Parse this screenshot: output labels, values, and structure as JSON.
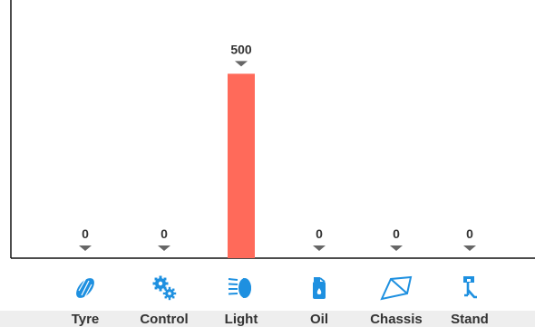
{
  "colors": {
    "bar": "#ff6a5a",
    "icon": "#1e90e0",
    "axis": "#111111",
    "marker": "#666666",
    "text": "#333333"
  },
  "chart_data": {
    "type": "bar",
    "categories": [
      "Tyre",
      "Control",
      "Light",
      "Oil",
      "Chassis",
      "Stand"
    ],
    "values": [
      0,
      0,
      500,
      0,
      0,
      0
    ],
    "data_labels": [
      "0",
      "0",
      "500",
      "0",
      "0",
      "0"
    ],
    "icons": [
      "tyre-icon",
      "gears-icon",
      "headlight-icon",
      "oil-can-icon",
      "chassis-frame-icon",
      "kickstand-icon"
    ],
    "ylim": [
      0,
      700
    ],
    "grid": false,
    "legend": "none",
    "title": "",
    "xlabel": "",
    "ylabel": ""
  }
}
